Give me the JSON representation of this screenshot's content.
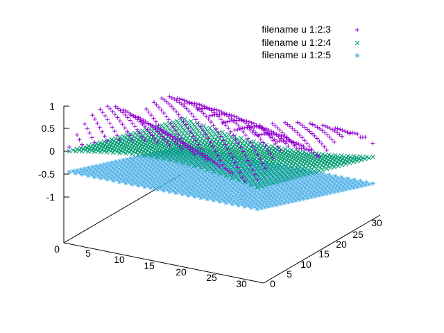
{
  "chart_data": {
    "type": "scatter",
    "projection": "3d",
    "title": "",
    "xlabel": "",
    "ylabel": "",
    "zlabel": "",
    "grid": false,
    "legend_position": "top-right",
    "x_range": [
      0,
      32
    ],
    "y_range": [
      0,
      32
    ],
    "z_range": [
      -2,
      1
    ],
    "x_ticks": [
      "5",
      "10",
      "15",
      "20",
      "25",
      "30"
    ],
    "y_ticks": [
      "0",
      "5",
      "10",
      "15",
      "20",
      "25",
      "30"
    ],
    "z_ticks": [
      "1",
      "0.5",
      "0",
      "-0.5",
      "-1"
    ],
    "x_origin_label": "0",
    "series": [
      {
        "name": "filename u 1:2:3",
        "marker": "plus",
        "color": "#9400d3",
        "description_values": "ridges between 0.5 and 1.4 along x"
      },
      {
        "name": "filename u 1:2:4",
        "marker": "cross",
        "color": "#009e73",
        "description_values": "surface near 0 to 0.5"
      },
      {
        "name": "filename u 1:2:5",
        "marker": "star",
        "color": "#56b4e9",
        "description_values": "flat plane at -0.5"
      }
    ]
  }
}
